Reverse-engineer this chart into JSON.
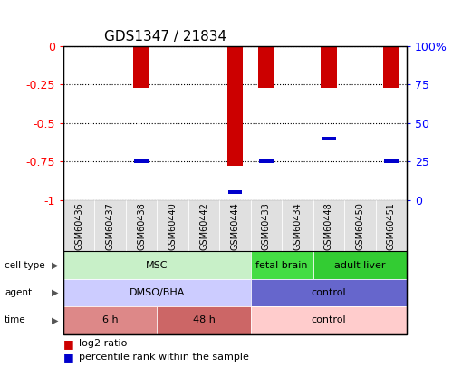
{
  "title": "GDS1347 / 21834",
  "samples": [
    "GSM60436",
    "GSM60437",
    "GSM60438",
    "GSM60440",
    "GSM60442",
    "GSM60444",
    "GSM60433",
    "GSM60434",
    "GSM60448",
    "GSM60450",
    "GSM60451"
  ],
  "log2_ratio": [
    0,
    0,
    -0.27,
    0,
    0,
    -0.78,
    -0.27,
    0,
    -0.27,
    0,
    -0.27
  ],
  "percentile_rank": [
    null,
    null,
    25,
    null,
    null,
    5,
    25,
    null,
    40,
    null,
    25
  ],
  "ylim_left": [
    -1,
    0
  ],
  "ylim_right": [
    0,
    100
  ],
  "yticks_left": [
    0,
    -0.25,
    -0.5,
    -0.75,
    -1
  ],
  "yticks_right": [
    0,
    25,
    50,
    75,
    100
  ],
  "cell_type_groups": [
    {
      "label": "MSC",
      "start": 0,
      "end": 6,
      "color": "#C8F0C8"
    },
    {
      "label": "fetal brain",
      "start": 6,
      "end": 8,
      "color": "#44DD44"
    },
    {
      "label": "adult liver",
      "start": 8,
      "end": 11,
      "color": "#33CC33"
    }
  ],
  "agent_groups": [
    {
      "label": "DMSO/BHA",
      "start": 0,
      "end": 6,
      "color": "#CCCCFF"
    },
    {
      "label": "control",
      "start": 6,
      "end": 11,
      "color": "#6666CC"
    }
  ],
  "time_groups": [
    {
      "label": "6 h",
      "start": 0,
      "end": 3,
      "color": "#DD8888"
    },
    {
      "label": "48 h",
      "start": 3,
      "end": 6,
      "color": "#CC6666"
    },
    {
      "label": "control",
      "start": 6,
      "end": 11,
      "color": "#FFCCCC"
    }
  ],
  "bar_color": "#CC0000",
  "percentile_color": "#0000CC",
  "bar_width": 0.5,
  "row_labels": [
    "cell type",
    "agent",
    "time"
  ],
  "legend_items": [
    {
      "label": "log2 ratio",
      "color": "#CC0000"
    },
    {
      "label": "percentile rank within the sample",
      "color": "#0000CC"
    }
  ]
}
